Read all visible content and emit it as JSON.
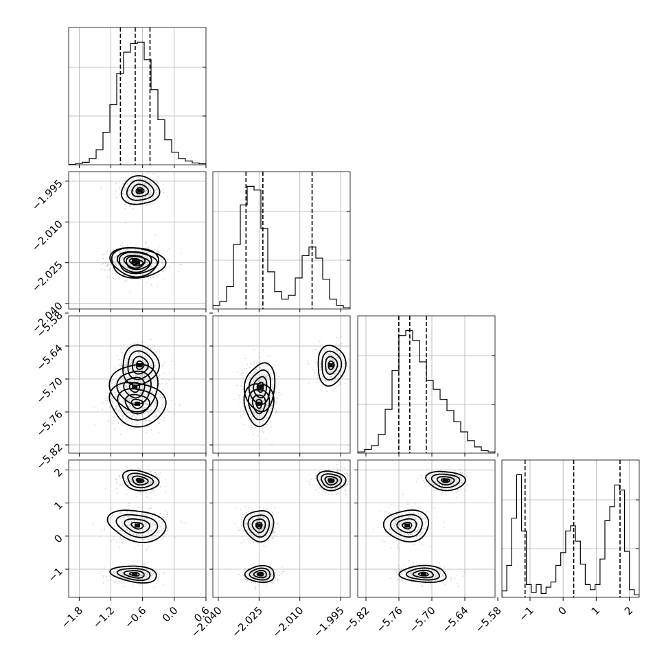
{
  "chart_data": {
    "type": "corner",
    "colors": {
      "ink": "#000000",
      "grid": "#b0b0b0",
      "scatter": "#9a9a9a"
    },
    "grid": true,
    "parameters": [
      {
        "range": [
          -2.0,
          0.6
        ],
        "ticks": [
          -1.8,
          -1.2,
          -0.6,
          0.0,
          0.6
        ],
        "tick_labels": [
          "−1.8",
          "−1.2",
          "−0.6",
          "0.0",
          "0.6"
        ],
        "quantiles": [
          -1.02,
          -0.74,
          -0.46
        ],
        "histogram": [
          0.002,
          0.01,
          0.02,
          0.05,
          0.12,
          0.26,
          0.48,
          0.73,
          0.9,
          0.97,
          0.98,
          0.84,
          0.6,
          0.36,
          0.2,
          0.1,
          0.05,
          0.03,
          0.015,
          0.008
        ]
      },
      {
        "range": [
          -2.042,
          -1.9915
        ],
        "ticks": [
          -2.04,
          -2.025,
          -2.01,
          -1.995
        ],
        "tick_labels": [
          "−2.040",
          "−2.025",
          "−2.010",
          "−1.995"
        ],
        "quantiles": [
          -2.0298,
          -2.0236,
          -2.0055
        ],
        "histogram": [
          0.03,
          0.06,
          0.18,
          0.52,
          0.84,
          0.99,
          0.96,
          0.65,
          0.3,
          0.14,
          0.08,
          0.11,
          0.25,
          0.43,
          0.5,
          0.41,
          0.24,
          0.08,
          0.03,
          0.01
        ]
      },
      {
        "range": [
          -5.835,
          -5.585
        ],
        "ticks": [
          -5.82,
          -5.76,
          -5.7,
          -5.64,
          -5.58
        ],
        "tick_labels": [
          "−5.82",
          "−5.76",
          "−5.70",
          "−5.64",
          "−5.58"
        ],
        "quantiles": [
          -5.7602,
          -5.7402,
          -5.7102
        ],
        "histogram": [
          0.01,
          0.03,
          0.06,
          0.15,
          0.35,
          0.66,
          0.94,
          0.98,
          0.9,
          0.73,
          0.58,
          0.51,
          0.43,
          0.34,
          0.25,
          0.17,
          0.1,
          0.05,
          0.02,
          0.01
        ]
      },
      {
        "range": [
          -1.85,
          2.3
        ],
        "ticks": [
          -1,
          0,
          1,
          2
        ],
        "tick_labels": [
          "−1",
          "0",
          "1",
          "2"
        ],
        "quantiles": [
          -1.15,
          0.32,
          1.72
        ],
        "histogram": [
          0.05,
          0.25,
          0.62,
          0.96,
          0.52,
          0.1,
          0.04,
          0.1,
          0.03,
          0.08,
          0.12,
          0.25,
          0.35,
          0.52,
          0.56,
          0.44,
          0.26,
          0.1,
          0.06,
          0.1,
          0.3,
          0.6,
          0.71,
          0.88,
          0.84,
          0.36,
          0.06,
          0.02
        ]
      }
    ],
    "modes": [
      {
        "p0": -0.65,
        "p1": -1.9985,
        "p2": -5.675,
        "p3": 1.68,
        "weight": 0.34,
        "s": [
          0.16,
          0.0024,
          0.016,
          0.13
        ]
      },
      {
        "p0": -0.7,
        "p1": -2.025,
        "p2": -5.745,
        "p3": 0.32,
        "weight": 0.33,
        "s": [
          0.24,
          0.0024,
          0.018,
          0.22
        ]
      },
      {
        "p0": -0.75,
        "p1": -2.0245,
        "p2": -5.715,
        "p3": -1.15,
        "weight": 0.33,
        "s": [
          0.2,
          0.0025,
          0.02,
          0.11
        ]
      }
    ]
  }
}
